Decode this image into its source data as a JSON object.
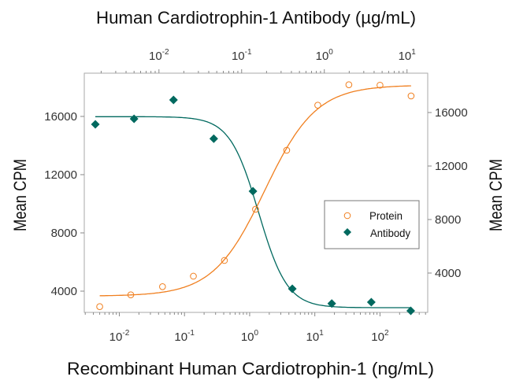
{
  "chart_data": {
    "type": "scatter",
    "top_title": "Human Cardiotrophin-1 Antibody (µg/mL)",
    "xlabel": "Recombinant Human Cardiotrophin-1 (ng/mL)",
    "ylabel_left": "Mean CPM",
    "ylabel_right": "Mean CPM",
    "x_bottom": {
      "scale": "log",
      "range": [
        0.0029,
        540
      ],
      "tick_base": "10",
      "tick_exponents": [
        "-2",
        "-1",
        "0",
        "1",
        "2"
      ]
    },
    "x_top": {
      "scale": "log",
      "range": [
        0.00125,
        17.8
      ],
      "tick_base": "10",
      "tick_exponents": [
        "-2",
        "-1",
        "0",
        "1"
      ]
    },
    "y_left": {
      "range": [
        2540,
        18970
      ],
      "ticks": [
        "4000",
        "8000",
        "12000",
        "16000"
      ]
    },
    "y_right": {
      "range": [
        1060,
        18940
      ],
      "ticks": [
        "4000",
        "8000",
        "12000",
        "16000"
      ]
    },
    "grid": false,
    "legend_placement": "center-right",
    "series": [
      {
        "name": "Protein",
        "axes": "bottom-left",
        "marker": "open-circle",
        "color": "#f07f1f",
        "x": [
          0.005,
          0.015,
          0.046,
          0.137,
          0.41,
          1.23,
          3.7,
          11.1,
          33.3,
          100,
          300
        ],
        "y": [
          2935,
          3746,
          4308,
          5027,
          6108,
          9622,
          13676,
          16773,
          18178,
          18146,
          17405
        ],
        "fit": {
          "model": "4PL",
          "bottom": 3660,
          "top": 18150,
          "ec50": 1.7,
          "hill": 1.1
        }
      },
      {
        "name": "Antibody",
        "axes": "top-right",
        "marker": "filled-diamond",
        "color": "#00695f",
        "x": [
          0.0017,
          0.005,
          0.015,
          0.046,
          0.137,
          0.41,
          1.23,
          3.7,
          11.1
        ],
        "y": [
          15118,
          15529,
          16941,
          14041,
          10118,
          2824,
          1724,
          1824,
          1176
        ],
        "fit": {
          "model": "4PL",
          "bottom": 1410,
          "top": 15690,
          "ic50": 0.16,
          "hill": 2.5
        }
      }
    ]
  }
}
